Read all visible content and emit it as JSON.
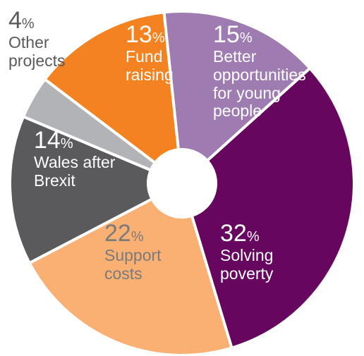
{
  "chart_data": {
    "type": "pie",
    "donut": true,
    "title": "",
    "slices": [
      {
        "value": 32,
        "unit": "%",
        "label": "Solving\npoverty",
        "color": "#66065f",
        "text_color": "#ffffff"
      },
      {
        "value": 22,
        "unit": "%",
        "label": "Support\ncosts",
        "color": "#fbb073",
        "text_color": "#7a7a7a"
      },
      {
        "value": 14,
        "unit": "%",
        "label": "Wales after\nBrexit",
        "color": "#5a5a5c",
        "text_color": "#ffffff"
      },
      {
        "value": 4,
        "unit": "%",
        "label": "Other\nprojects",
        "color": "#b1b3b6",
        "text_color": "#5a5a5c"
      },
      {
        "value": 13,
        "unit": "%",
        "label": "Fund\nraising",
        "color": "#f48220",
        "text_color": "#ffffff"
      },
      {
        "value": 15,
        "unit": "%",
        "label": "Better\nopportunities\nfor young\npeople",
        "color": "#9e7bb0",
        "text_color": "#ffffff"
      }
    ]
  }
}
